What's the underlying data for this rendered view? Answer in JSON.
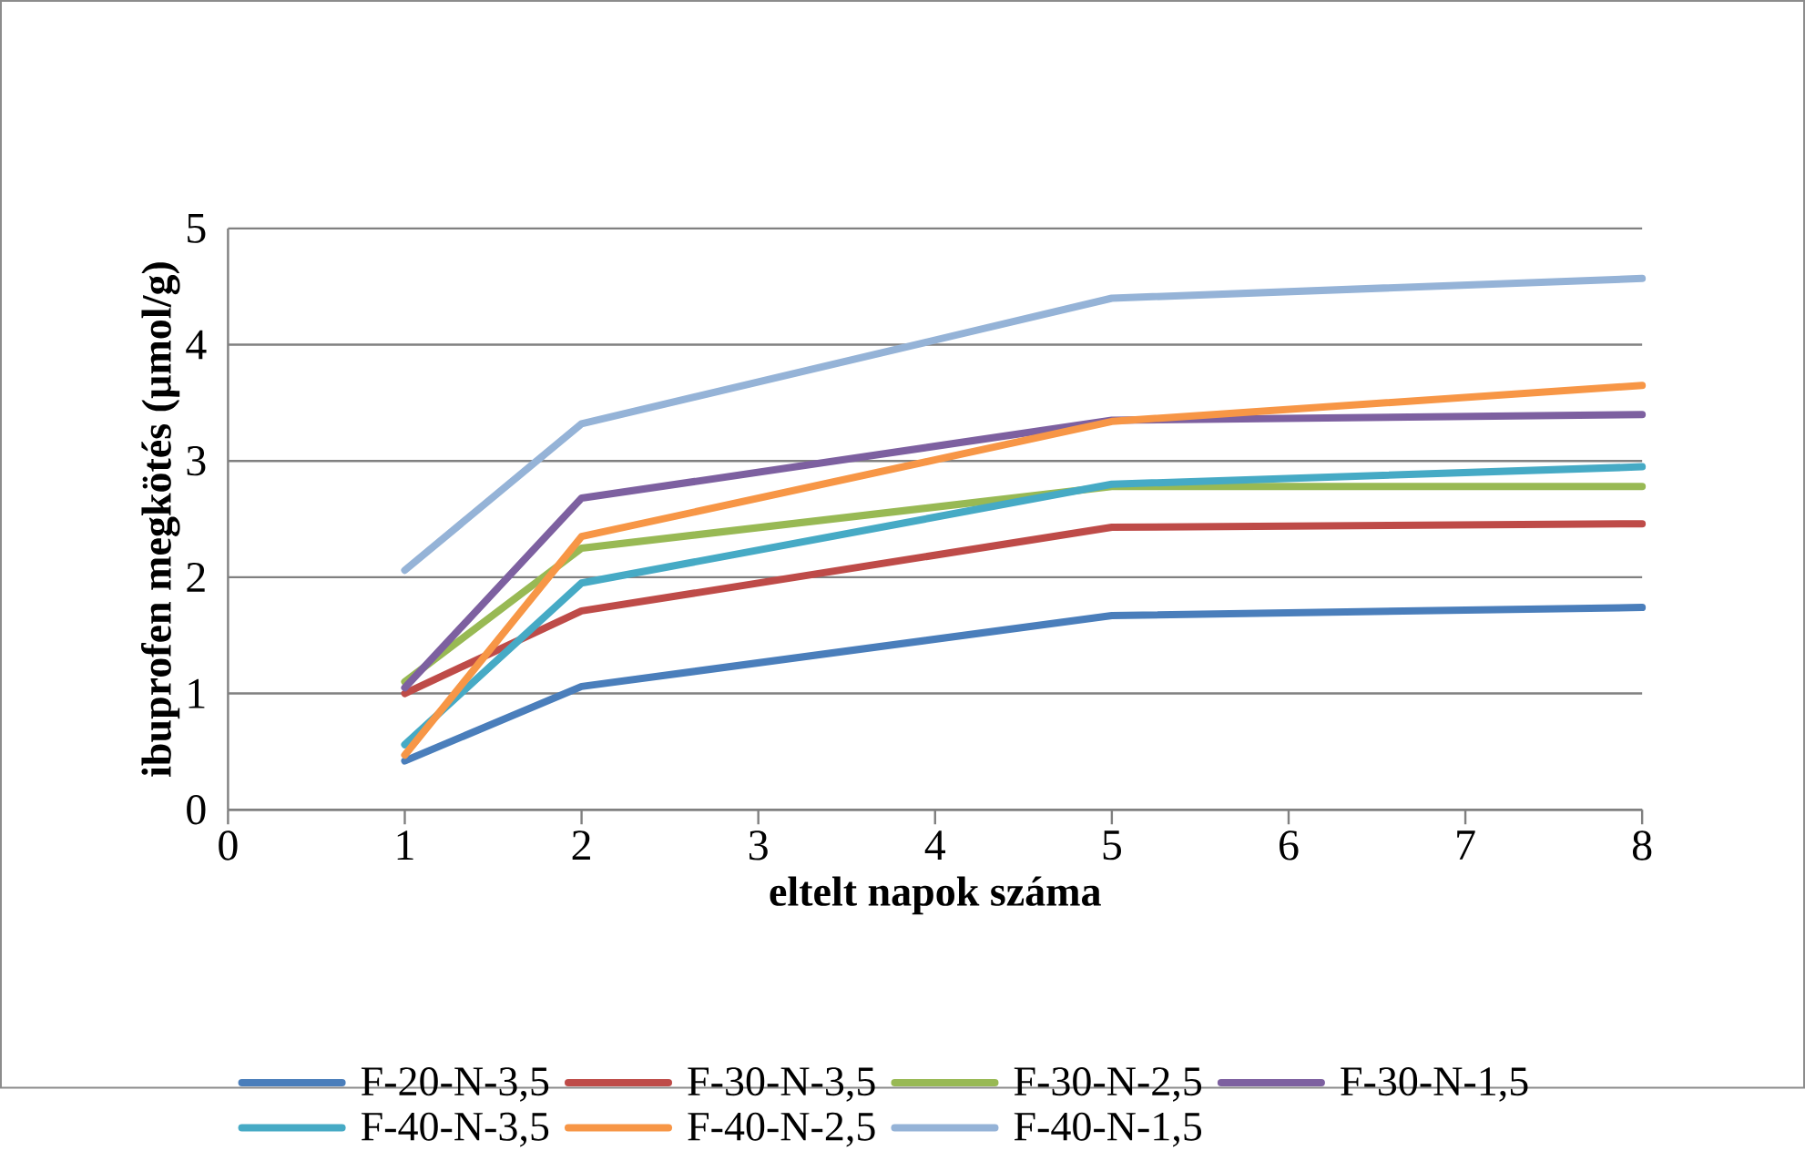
{
  "chart_data": {
    "type": "line",
    "xlabel": "eltelt napok száma",
    "ylabel": "ibuprofen megkötés (µmol/g)",
    "x": [
      1,
      2,
      5,
      8
    ],
    "series": [
      {
        "name": "F-20-N-3,5",
        "color": "#4a7ebb",
        "values": [
          0.42,
          1.06,
          1.67,
          1.74
        ]
      },
      {
        "name": "F-30-N-3,5",
        "color": "#be4b48",
        "values": [
          1.0,
          1.71,
          2.43,
          2.46
        ]
      },
      {
        "name": "F-30-N-2,5",
        "color": "#98b954",
        "values": [
          1.1,
          2.25,
          2.78,
          2.78
        ]
      },
      {
        "name": "F-30-N-1,5",
        "color": "#7d60a0",
        "values": [
          1.05,
          2.68,
          3.35,
          3.4
        ]
      },
      {
        "name": "F-40-N-3,5",
        "color": "#46aac5",
        "values": [
          0.56,
          1.95,
          2.8,
          2.95
        ]
      },
      {
        "name": "F-40-N-2,5",
        "color": "#f79646",
        "values": [
          0.47,
          2.35,
          3.34,
          3.65
        ]
      },
      {
        "name": "F-40-N-1,5",
        "color": "#95b3d7",
        "values": [
          2.06,
          3.32,
          4.4,
          4.57
        ]
      }
    ],
    "xlim": [
      0,
      8
    ],
    "xticks": [
      0,
      1,
      2,
      3,
      4,
      5,
      6,
      7,
      8
    ],
    "ylim": [
      0,
      5
    ],
    "yticks": [
      0,
      1,
      2,
      3,
      4,
      5
    ],
    "grid": "y",
    "legend": "bottom",
    "marker": "none",
    "line_style": "solid"
  }
}
